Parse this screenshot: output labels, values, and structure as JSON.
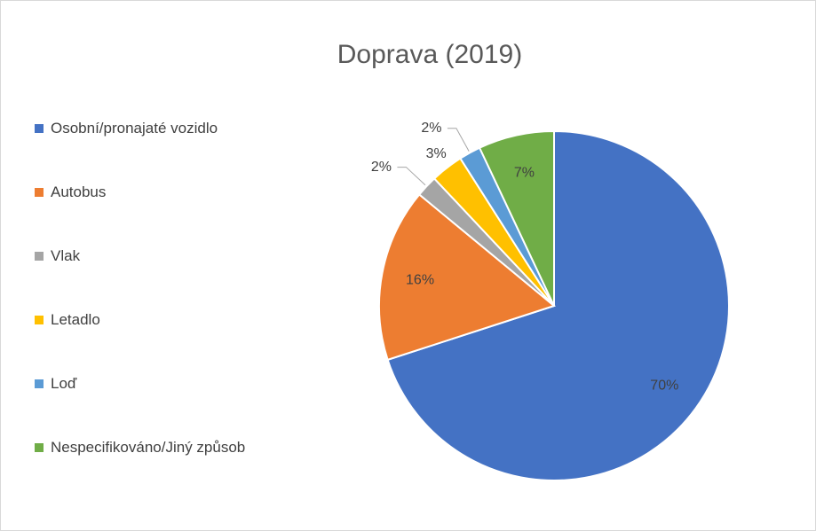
{
  "chart_data": {
    "type": "pie",
    "title": "Doprava (2019)",
    "categories": [
      "Osobní/pronajaté vozidlo",
      "Autobus",
      "Vlak",
      "Letadlo",
      "Loď",
      "Nespecifikováno/Jiný způsob"
    ],
    "values": [
      70,
      16,
      2,
      3,
      2,
      7
    ],
    "value_labels": [
      "70%",
      "16%",
      "2%",
      "3%",
      "2%",
      "7%"
    ],
    "colors": [
      "#4472c4",
      "#ed7d31",
      "#a5a5a5",
      "#ffc000",
      "#5b9bd5",
      "#70ad47"
    ],
    "legend": "left"
  }
}
